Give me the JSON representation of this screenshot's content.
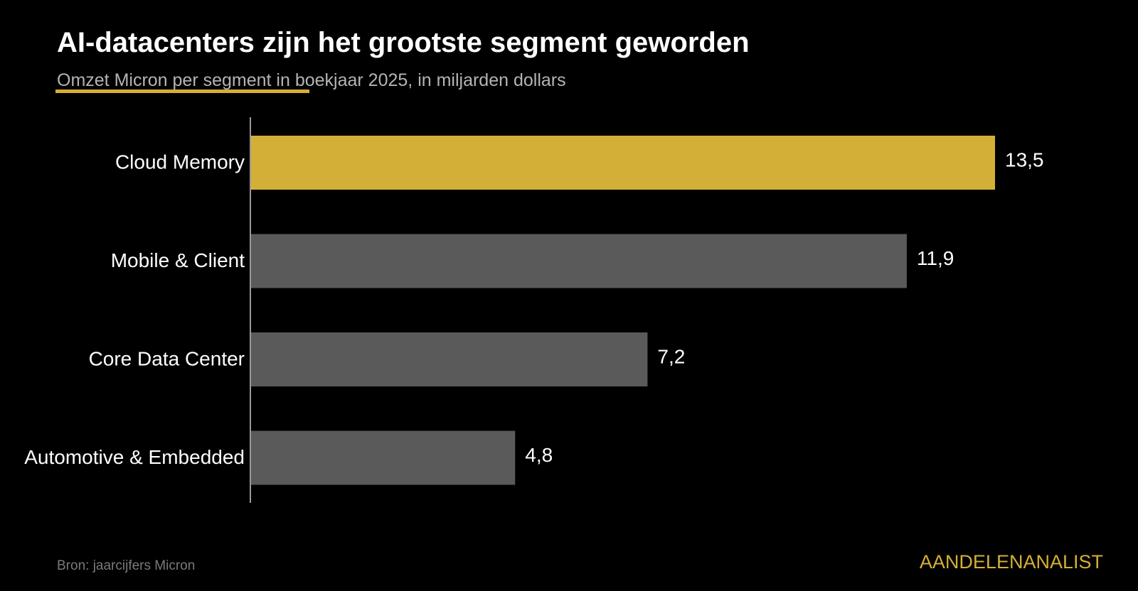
{
  "chart_data": {
    "type": "bar",
    "orientation": "horizontal",
    "title": "AI-datacenters zijn het grootste segment geworden",
    "subtitle": "Omzet Micron per segment in boekjaar 2025, in miljarden dollars",
    "categories": [
      "Cloud Memory",
      "Mobile & Client",
      "Core Data Center",
      "Automotive & Embedded"
    ],
    "values": [
      13.5,
      11.9,
      7.2,
      4.8
    ],
    "value_labels": [
      "13,5",
      "11,9",
      "7,2",
      "4,8"
    ],
    "highlight_index": 0,
    "xlim": [
      0,
      13.5
    ],
    "grid": false,
    "legend": "none",
    "colors": {
      "highlight": "#d4af37",
      "default": "#5a5a5a",
      "axis": "#999999",
      "label": "#ffffff"
    }
  },
  "footer": {
    "source": "Bron: jaarcijfers Micron",
    "brand": "AANDELENANALIST"
  }
}
